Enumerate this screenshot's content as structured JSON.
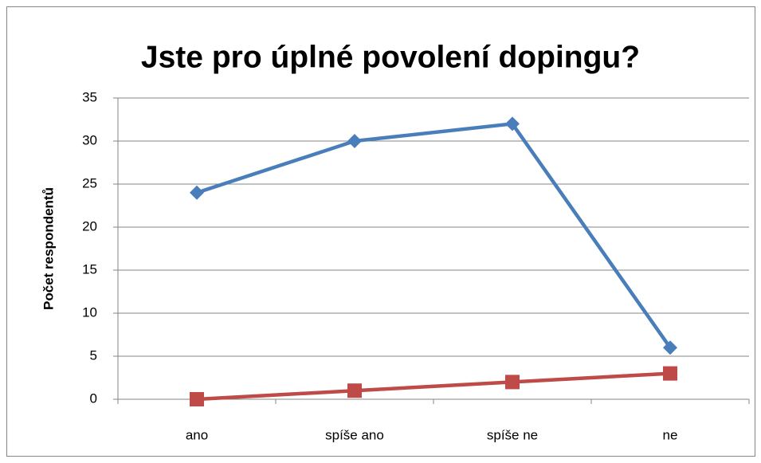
{
  "chart_data": {
    "type": "line",
    "title": "Jste pro úplné povolení dopingu?",
    "y_label": "Počet respondentů",
    "categories": [
      "ano",
      "spíše ano",
      "spíše ne",
      "ne"
    ],
    "series": [
      {
        "color": "#4a7ebb",
        "marker": "diamond",
        "values": [
          24,
          30,
          32,
          6
        ]
      },
      {
        "color": "#be4b48",
        "marker": "square",
        "values": [
          0,
          1,
          2,
          3
        ]
      }
    ],
    "ylim": [
      0,
      35
    ],
    "yticks": [
      0,
      5,
      10,
      15,
      20,
      25,
      30,
      35
    ],
    "grid": true
  }
}
